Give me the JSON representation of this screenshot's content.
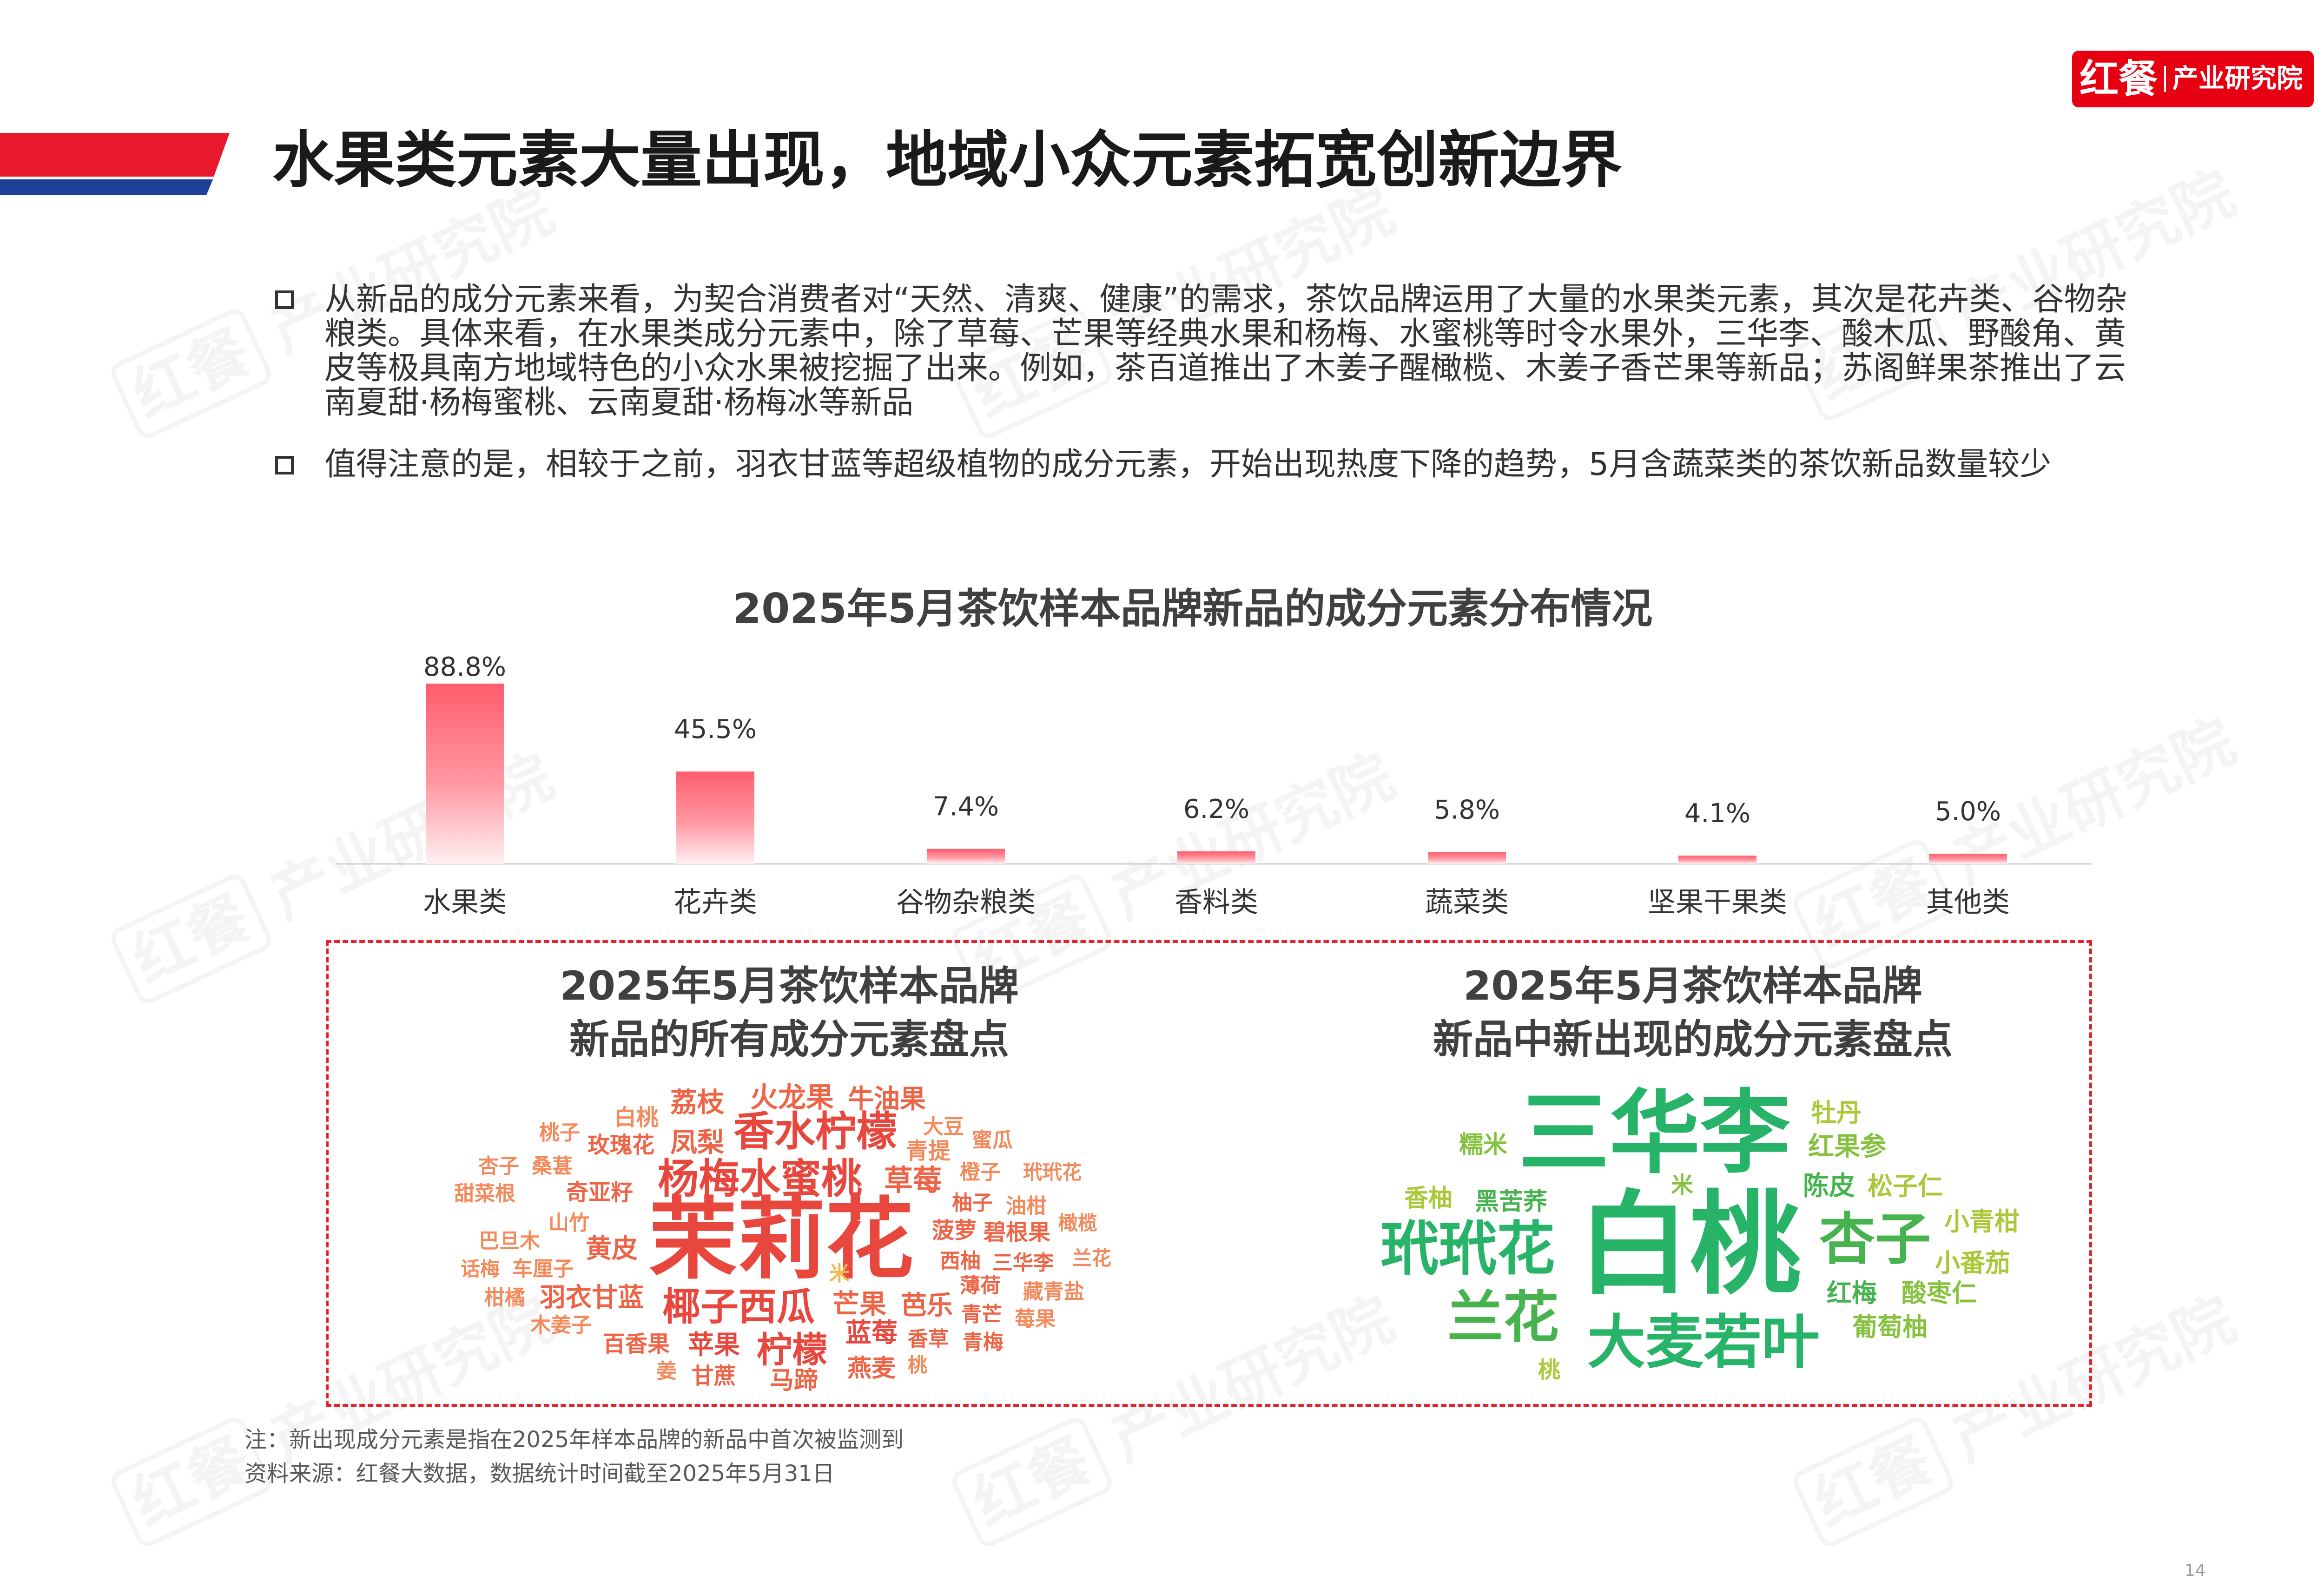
{
  "header": {
    "title": "水果类元素大量出现，地域小众元素拓宽创新边界",
    "logo": {
      "brand": "红餐",
      "name": "产业研究院"
    }
  },
  "bullets": [
    "从新品的成分元素来看，为契合消费者对“天然、清爽、健康”的需求，茶饮品牌运用了大量的水果类元素，其次是花卉类、谷物杂粮类。具体来看，在水果类成分元素中，除了草莓、芒果等经典水果和杨梅、水蜜桃等时令水果外，三华李、酸木瓜、野酸角、黄皮等极具南方地域特色的小众水果被挖掘了出来。例如，茶百道推出了木姜子醒橄榄、木姜子香芒果等新品；苏阁鲜果茶推出了云南夏甜·杨梅蜜桃、云南夏甜·杨梅冰等新品",
    "值得注意的是，相较于之前，羽衣甘蓝等超级植物的成分元素，开始出现热度下降的趋势，5月含蔬菜类的茶饮新品数量较少"
  ],
  "chart_data": {
    "type": "bar",
    "title": "2025年5月茶饮样本品牌新品的成分元素分布情况",
    "categories": [
      "水果类",
      "花卉类",
      "谷物杂粮类",
      "香料类",
      "蔬菜类",
      "坚果干果类",
      "其他类"
    ],
    "values": [
      88.8,
      45.5,
      7.4,
      6.2,
      5.8,
      4.1,
      5.0
    ],
    "unit": "%",
    "xlabel": "",
    "ylabel": "",
    "ylim": [
      0,
      100
    ],
    "grid": false,
    "legend": "none"
  },
  "word_clouds": [
    {
      "title": [
        "2025年5月茶饮样本品牌",
        "新品的所有成分元素盘点"
      ],
      "words": [
        "荔枝",
        "火龙果",
        "牛油果",
        "白桃",
        "桃子",
        "大豆",
        "蜜瓜",
        "香水柠檬",
        "玫瑰花",
        "凤梨",
        "青提",
        "杏子",
        "桑葚",
        "橙子",
        "玳玳花",
        "杨梅水蜜桃",
        "草莓",
        "甜菜根",
        "奇亚籽",
        "柚子",
        "油柑",
        "山竹",
        "茉莉花",
        "巴旦木",
        "黄皮",
        "菠萝",
        "碧根果",
        "橄榄",
        "话梅",
        "车厘子",
        "西柚",
        "三华李",
        "兰花",
        "米",
        "薄荷",
        "柑橘",
        "羽衣甘蓝",
        "椰子西瓜",
        "芒果",
        "芭乐",
        "藏青盐",
        "木姜子",
        "青芒",
        "莓果",
        "百香果",
        "苹果",
        "柠檬",
        "蓝莓",
        "香草",
        "青梅",
        "姜",
        "甘蔗",
        "马蹄",
        "燕麦",
        "桃"
      ]
    },
    {
      "title": [
        "2025年5月茶饮样本品牌",
        "新品中新出现的成分元素盘点"
      ],
      "words": [
        "三华李",
        "牡丹",
        "红果参",
        "糯米",
        "香柚",
        "黑苦荞",
        "米",
        "陈皮",
        "松子仁",
        "白桃",
        "玳玳花",
        "杏子",
        "小青柑",
        "小番茄",
        "兰花",
        "红梅",
        "酸枣仁",
        "大麦若叶",
        "葡萄柚",
        "桃"
      ]
    }
  ],
  "notes": [
    "注：新出现成分元素是指在2025年样本品牌的新品中首次被监测到",
    "资料来源：红餐大数据，数据统计时间截至2025年5月31日"
  ],
  "page_number": "14",
  "watermark": {
    "brand": "红餐",
    "name": "产业研究院"
  },
  "colors": {
    "brand_red": "#e60012",
    "header_blue": "#1d3f95",
    "bar": "#ff5d6c",
    "cloud_all": "#e8473e",
    "cloud_new": "#27b469",
    "frame": "#e3242b"
  }
}
